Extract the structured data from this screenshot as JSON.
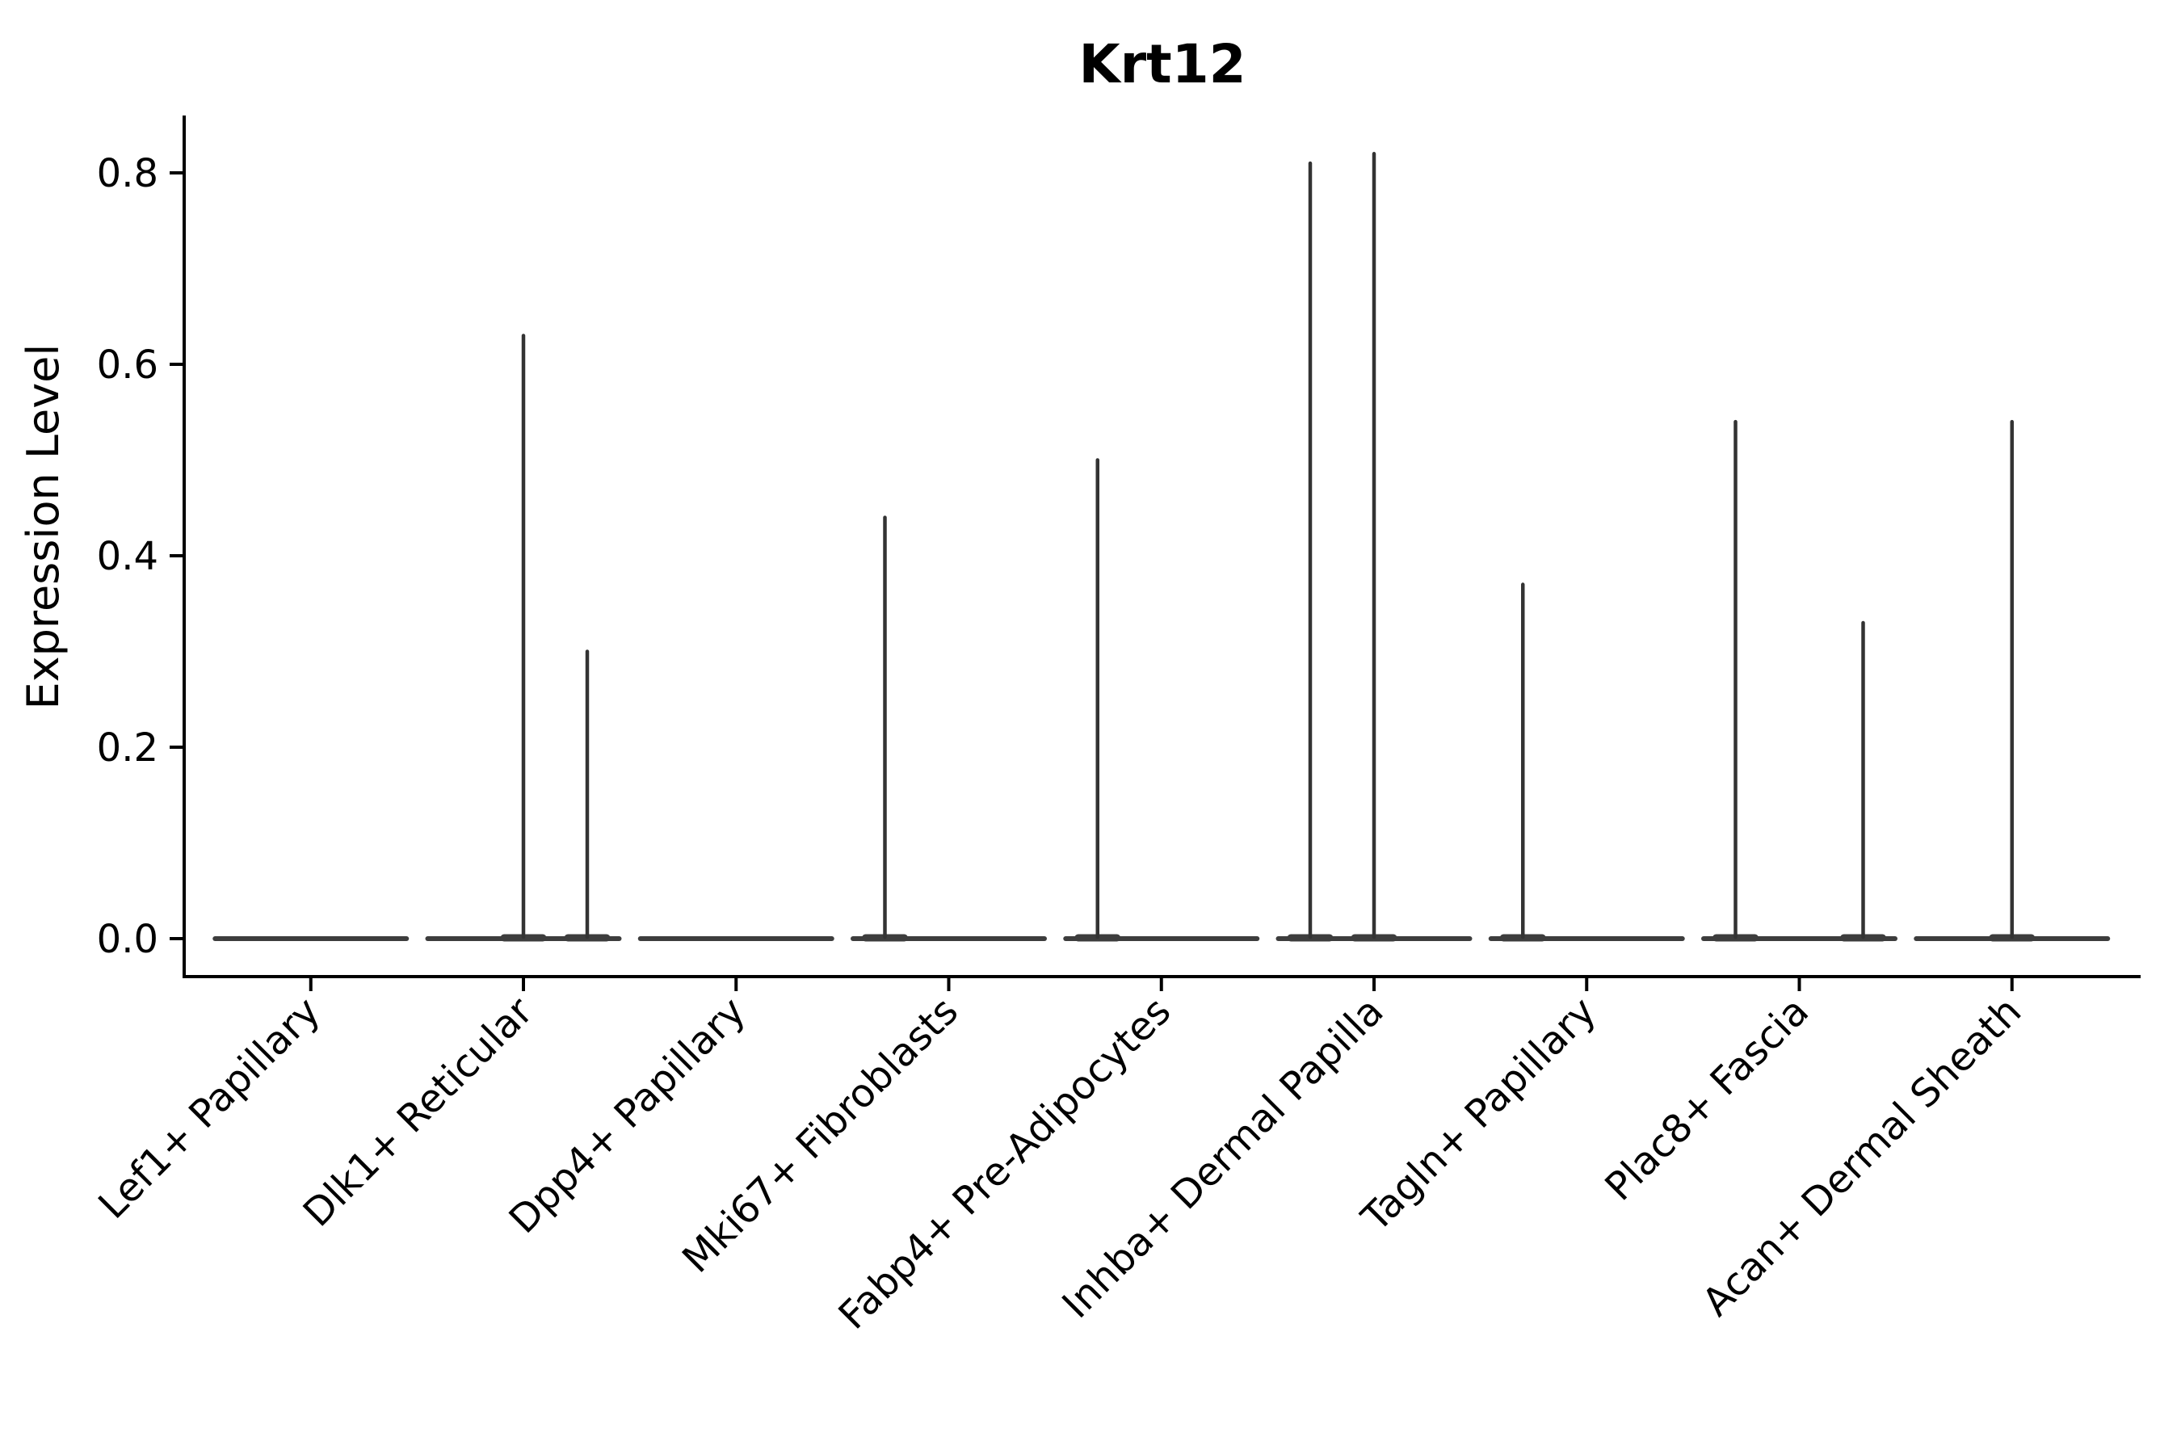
{
  "figure": {
    "background_color": "#ffffff",
    "axis_color": "#000000",
    "violin_color": "#333333",
    "baseline_color": "#3d3d3d"
  },
  "chart_data": {
    "type": "violin",
    "title": "Krt12",
    "xlabel": "",
    "ylabel": "Expression Level",
    "ylim": [
      0,
      0.86
    ],
    "yticks": [
      0.0,
      0.2,
      0.4,
      0.6,
      0.8
    ],
    "ytick_labels": [
      "0.0",
      "0.2",
      "0.4",
      "0.6",
      "0.8"
    ],
    "grid": false,
    "legend_position": "none",
    "x_tick_label_rotation_deg": 45,
    "groups_per_category": 3,
    "group_positions": [
      "left",
      "center",
      "right"
    ],
    "description": "Each category holds three dodged violins collapsed to a flat base at 0 expression; nonzero entries are the thin density spikes reaching the listed maximum expression level.",
    "categories": [
      {
        "label": "Lef1+ Papillary",
        "spike_maxima": [
          0,
          0,
          0
        ]
      },
      {
        "label": "Dlk1+ Reticular",
        "spike_maxima": [
          0,
          0.63,
          0.3
        ]
      },
      {
        "label": "Dpp4+ Papillary",
        "spike_maxima": [
          0,
          0,
          0
        ]
      },
      {
        "label": "Mki67+ Fibroblasts",
        "spike_maxima": [
          0.44,
          0,
          0
        ]
      },
      {
        "label": "Fabp4+ Pre-Adipocytes",
        "spike_maxima": [
          0.5,
          0,
          0
        ]
      },
      {
        "label": "Inhba+ Dermal Papilla",
        "spike_maxima": [
          0.81,
          0.82,
          0
        ]
      },
      {
        "label": "Tagln+ Papillary",
        "spike_maxima": [
          0.37,
          0,
          0
        ]
      },
      {
        "label": "Plac8+ Fascia",
        "spike_maxima": [
          0.54,
          0,
          0.33
        ]
      },
      {
        "label": "Acan+ Dermal Sheath",
        "spike_maxima": [
          0,
          0.54,
          0
        ]
      }
    ]
  }
}
